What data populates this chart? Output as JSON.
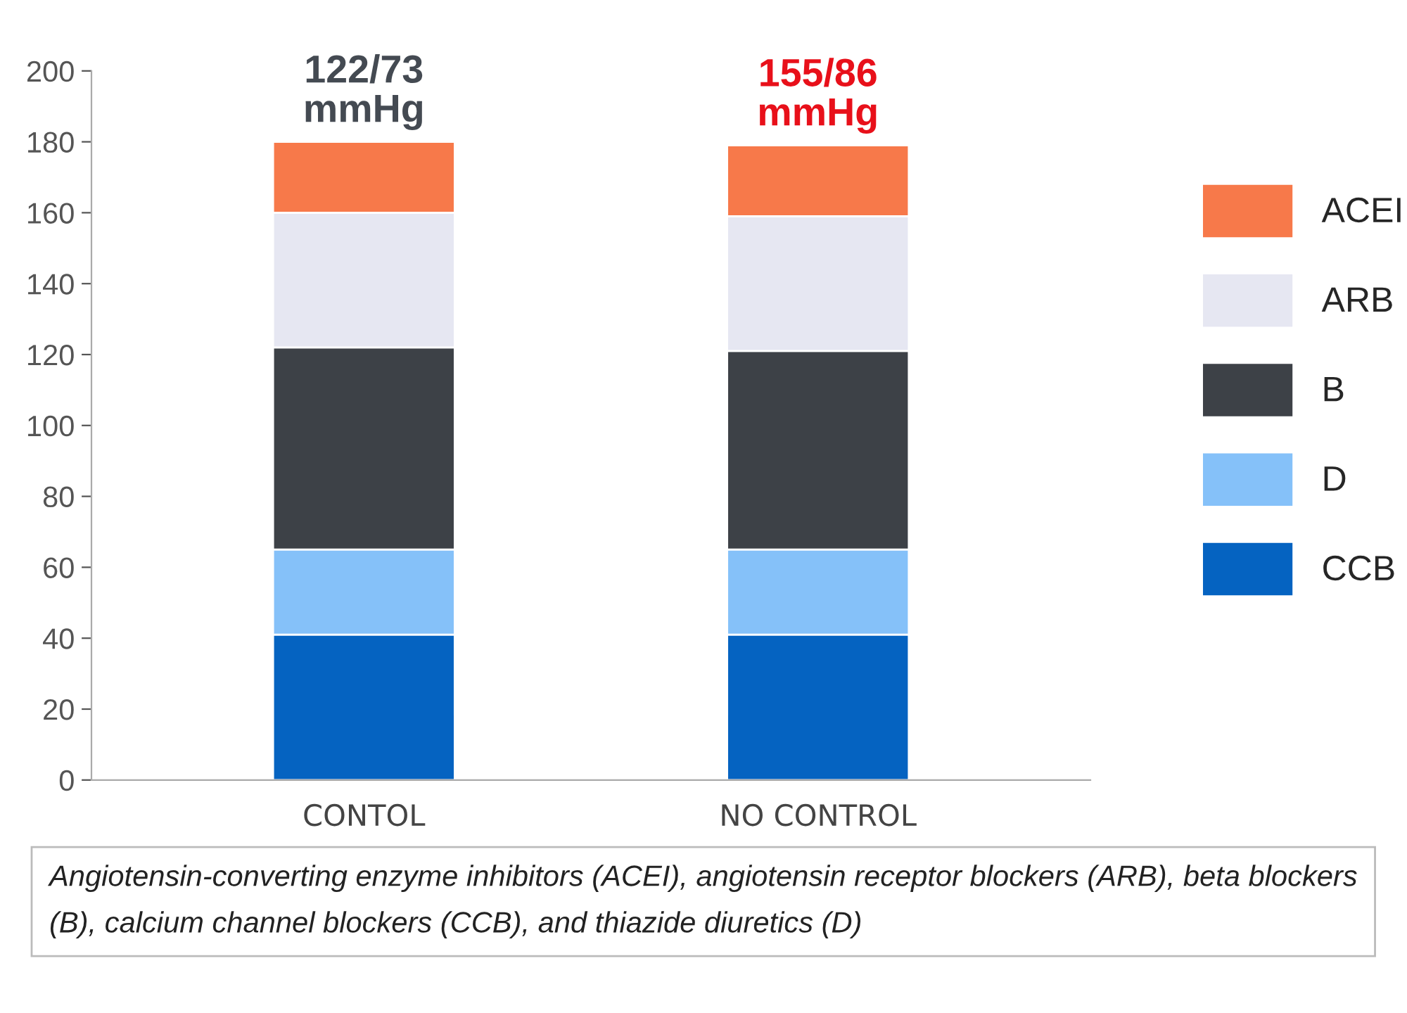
{
  "chart_data": {
    "type": "bar",
    "stacked": true,
    "categories": [
      "CONTOL",
      "NO CONTROL"
    ],
    "series": [
      {
        "name": "CCB",
        "color": "#0563c1",
        "values": [
          41,
          41
        ]
      },
      {
        "name": "D",
        "color": "#85c1f9",
        "values": [
          24,
          24
        ]
      },
      {
        "name": "B",
        "color": "#3d4147",
        "values": [
          57,
          56
        ]
      },
      {
        "name": "ARB",
        "color": "#e6e7f2",
        "values": [
          38,
          38
        ]
      },
      {
        "name": "ACEI",
        "color": "#f7794a",
        "values": [
          20,
          20
        ]
      }
    ],
    "ylim": [
      0,
      200
    ],
    "yticks": [
      0,
      20,
      40,
      60,
      80,
      100,
      120,
      140,
      160,
      180,
      200
    ],
    "grid": false,
    "legend": "right",
    "annotations": [
      {
        "text": "122/73\nmmHg",
        "x": "CONTOL",
        "y": 180
      },
      {
        "text": "155/86\nmmHg",
        "x": "NO CONTROL",
        "y": 179
      },
      "Angiotensin-converting enzyme inhibitors (ACEI), angiotensin receptor blockers (ARB), beta blockers (B), calcium channel blockers (CCB), and thiazide diuretics (D)"
    ]
  }
}
